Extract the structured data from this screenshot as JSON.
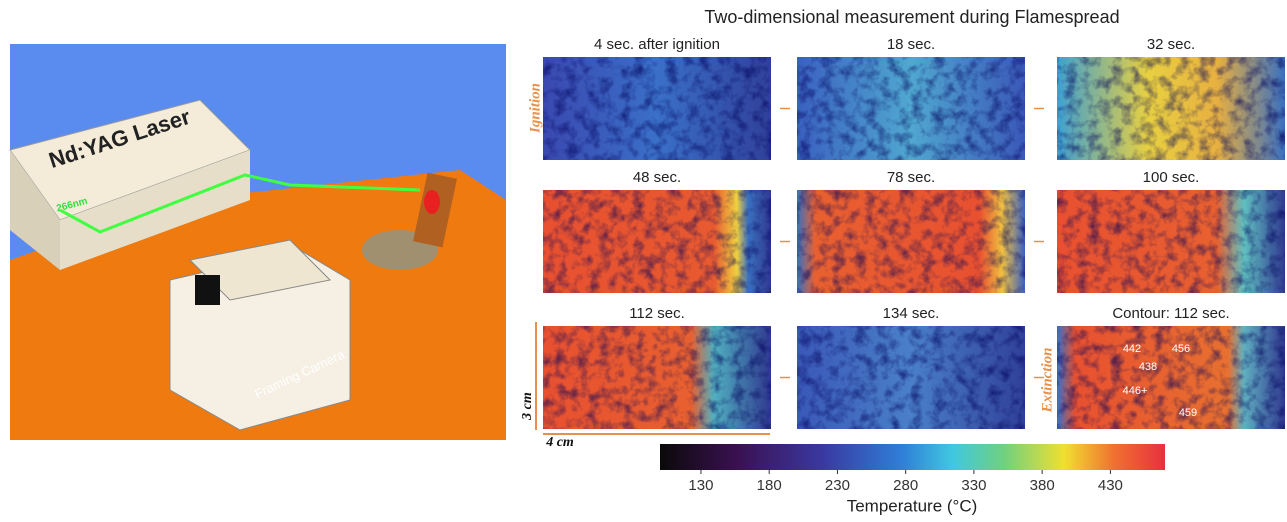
{
  "scene": {
    "laser_label": "Nd:YAG Laser",
    "wavelength": "266nm",
    "camera_label": "Framing Camera"
  },
  "figure": {
    "title": "Two-dimensional measurement during Flamespread",
    "panels": [
      {
        "label": "4 sec. after ignition"
      },
      {
        "label": "18 sec."
      },
      {
        "label": "32 sec."
      },
      {
        "label": "48 sec."
      },
      {
        "label": "78 sec."
      },
      {
        "label": "100 sec."
      },
      {
        "label": "112 sec."
      },
      {
        "label": "134 sec."
      },
      {
        "label": "Contour: 112 sec."
      }
    ],
    "contour_values": [
      "442",
      "456",
      "438",
      "446+",
      "459"
    ],
    "row_labels": {
      "top": "Ignition",
      "bottom": "Extinction"
    },
    "scale": {
      "height": "3 cm",
      "width": "4 cm"
    },
    "colorbar": {
      "label": "Temperature (°C)",
      "range": [
        100,
        470
      ],
      "ticks": [
        130,
        180,
        230,
        280,
        330,
        380,
        430
      ]
    }
  }
}
